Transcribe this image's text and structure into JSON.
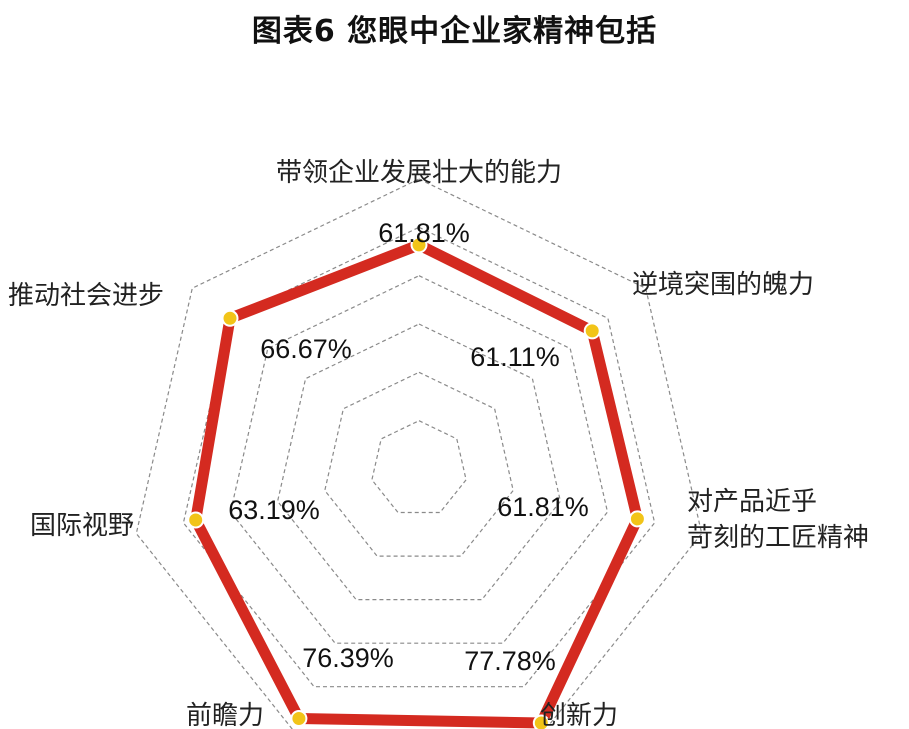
{
  "title": "图表6  您眼中企业家精神包括",
  "colors": {
    "series_line": "#d42a20",
    "marker_fill": "#f2c418",
    "grid": "#8a8a8a"
  },
  "chart_data": {
    "type": "radar",
    "title": "图表6  您眼中企业家精神包括",
    "axes": [
      {
        "label": "带领企业发展壮大的能力"
      },
      {
        "label": "逆境突围的魄力"
      },
      {
        "label": "对产品近乎\n苛刻的工匠精神"
      },
      {
        "label": "创新力"
      },
      {
        "label": "前瞻力"
      },
      {
        "label": "国际视野"
      },
      {
        "label": "推动社会进步"
      }
    ],
    "values": [
      61.81,
      61.11,
      61.81,
      77.78,
      76.39,
      63.19,
      66.67
    ],
    "value_labels": [
      "61.81%",
      "61.11%",
      "61.81%",
      "77.78%",
      "76.39%",
      "63.19%",
      "66.67%"
    ],
    "range": [
      0,
      80
    ],
    "grid_rings": 6,
    "grid": true,
    "legend": "none"
  }
}
